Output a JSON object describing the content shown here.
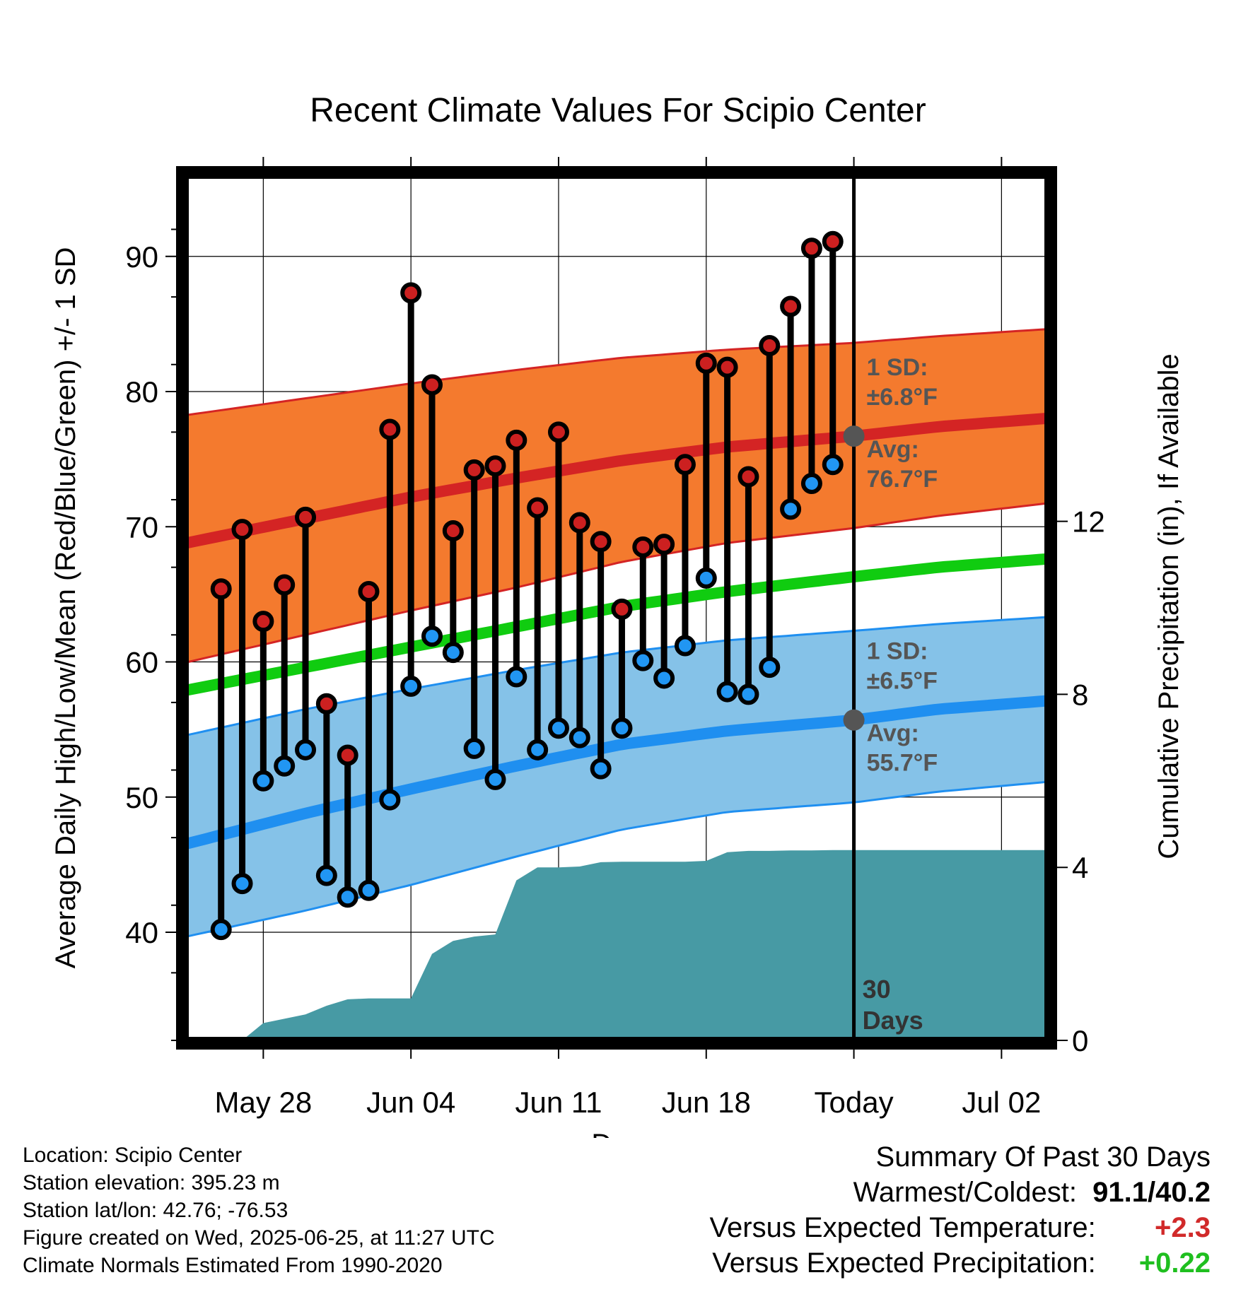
{
  "chart_data": {
    "type": "line",
    "title": "Recent Climate Values For Scipio Center",
    "xlabel": "Day",
    "ylabel": "Average Daily High/Low/Mean (Red/Blue/Green) +/- 1 SD",
    "y2label": "Cumulative Precipitation (in), If Available",
    "x_tick_labels": [
      "May 28",
      "Jun 04",
      "Jun 11",
      "Jun 18",
      "Today",
      "Jul 02"
    ],
    "x_tick_days": [
      2,
      9,
      16,
      23,
      30,
      37
    ],
    "y_ticks": [
      40,
      50,
      60,
      70,
      80,
      90
    ],
    "y2_ticks": [
      0,
      4,
      8,
      12
    ],
    "ylim": [
      32,
      96
    ],
    "y2lim": [
      0,
      20
    ],
    "xlim_days": [
      -1.7,
      39.2
    ],
    "grid": true,
    "today_line_label": "30 Days",
    "observed": {
      "days": [
        0,
        1,
        2,
        3,
        4,
        5,
        6,
        7,
        8,
        9,
        10,
        11,
        12,
        13,
        14,
        15,
        16,
        17,
        18,
        19,
        20,
        21,
        22,
        23,
        24,
        25,
        26,
        27,
        28,
        29
      ],
      "high": [
        65.4,
        69.8,
        63.0,
        65.7,
        70.7,
        56.9,
        53.1,
        65.2,
        77.2,
        87.3,
        80.5,
        69.7,
        74.2,
        74.5,
        76.4,
        71.4,
        77.0,
        70.3,
        68.9,
        63.9,
        68.5,
        68.7,
        74.6,
        82.1,
        81.8,
        73.7,
        83.4,
        86.3,
        90.6,
        91.1
      ],
      "low": [
        40.2,
        43.6,
        51.2,
        52.3,
        53.5,
        44.2,
        42.6,
        43.1,
        49.8,
        58.2,
        61.9,
        60.7,
        53.6,
        51.3,
        58.9,
        53.5,
        55.1,
        54.4,
        52.1,
        55.1,
        60.1,
        58.8,
        61.2,
        66.2,
        57.8,
        57.6,
        59.6,
        71.3,
        73.2,
        74.6
      ]
    },
    "normals": {
      "days": [
        -1,
        4,
        9,
        14,
        19,
        24,
        30,
        34,
        39
      ],
      "avg_high": [
        69.0,
        70.6,
        72.2,
        73.6,
        74.9,
        75.9,
        76.7,
        77.4,
        78.0
      ],
      "avg_high_plus_sd": [
        78.4,
        79.5,
        80.6,
        81.6,
        82.5,
        83.1,
        83.6,
        84.1,
        84.6
      ],
      "avg_high_minus_sd": [
        60.2,
        62.0,
        63.8,
        65.5,
        67.4,
        68.8,
        69.9,
        70.8,
        71.7
      ],
      "avg_mean": [
        58.1,
        59.6,
        61.1,
        62.6,
        64.1,
        65.2,
        66.3,
        67.0,
        67.6
      ],
      "avg_low": [
        46.8,
        48.8,
        50.6,
        52.3,
        53.9,
        54.9,
        55.7,
        56.5,
        57.1
      ],
      "avg_low_plus_sd": [
        54.8,
        56.5,
        58.0,
        59.4,
        60.7,
        61.6,
        62.3,
        62.8,
        63.3
      ],
      "avg_low_minus_sd": [
        39.9,
        41.6,
        43.5,
        45.6,
        47.6,
        48.9,
        49.6,
        50.4,
        51.1
      ]
    },
    "precipitation": {
      "days": [
        0,
        1,
        2,
        3,
        4,
        5,
        6,
        7,
        8,
        9,
        10,
        11,
        12,
        13,
        14,
        15,
        16,
        17,
        18,
        19,
        20,
        21,
        22,
        23,
        24,
        25,
        26,
        27,
        28,
        29,
        30
      ],
      "cumulative": [
        0,
        0,
        0.4,
        0.5,
        0.6,
        0.8,
        0.95,
        0.97,
        0.97,
        0.97,
        2.0,
        2.3,
        2.4,
        2.45,
        3.7,
        4.0,
        4.0,
        4.02,
        4.12,
        4.13,
        4.13,
        4.13,
        4.13,
        4.15,
        4.35,
        4.38,
        4.38,
        4.39,
        4.39,
        4.4,
        4.4
      ]
    },
    "annotations": {
      "high": {
        "sd_label": "1 SD:",
        "sd_value": "±6.8°F",
        "avg_label": "Avg:",
        "avg_value": "76.7°F"
      },
      "low": {
        "sd_label": "1 SD:",
        "sd_value": "±6.5°F",
        "avg_label": "Avg:",
        "avg_value": "55.7°F"
      }
    },
    "colors": {
      "high_band": "#f47a2e",
      "high_line": "#d42424",
      "mean_line": "#10cc10",
      "low_band": "#85c2e8",
      "low_line": "#1f8ff0",
      "precip": "#479aa4",
      "high_marker": "#cc2020",
      "low_marker": "#2196f3"
    }
  },
  "info": {
    "location": "Location: Scipio Center",
    "elevation": "Station elevation: 395.23 m",
    "latlon": "Station lat/lon: 42.76; -76.53",
    "created": "Figure created on Wed, 2025-06-25, at 11:27 UTC",
    "normals_period": "Climate Normals Estimated From 1990-2020"
  },
  "summary": {
    "title": "Summary Of Past 30 Days",
    "warmest_coldest_label": "Warmest/Coldest:",
    "warmest_coldest_value": "91.1/40.2",
    "temp_label": "Versus Expected Temperature:",
    "temp_value": "+2.3",
    "precip_label": "Versus Expected Precipitation:",
    "precip_value": "+0.22"
  }
}
